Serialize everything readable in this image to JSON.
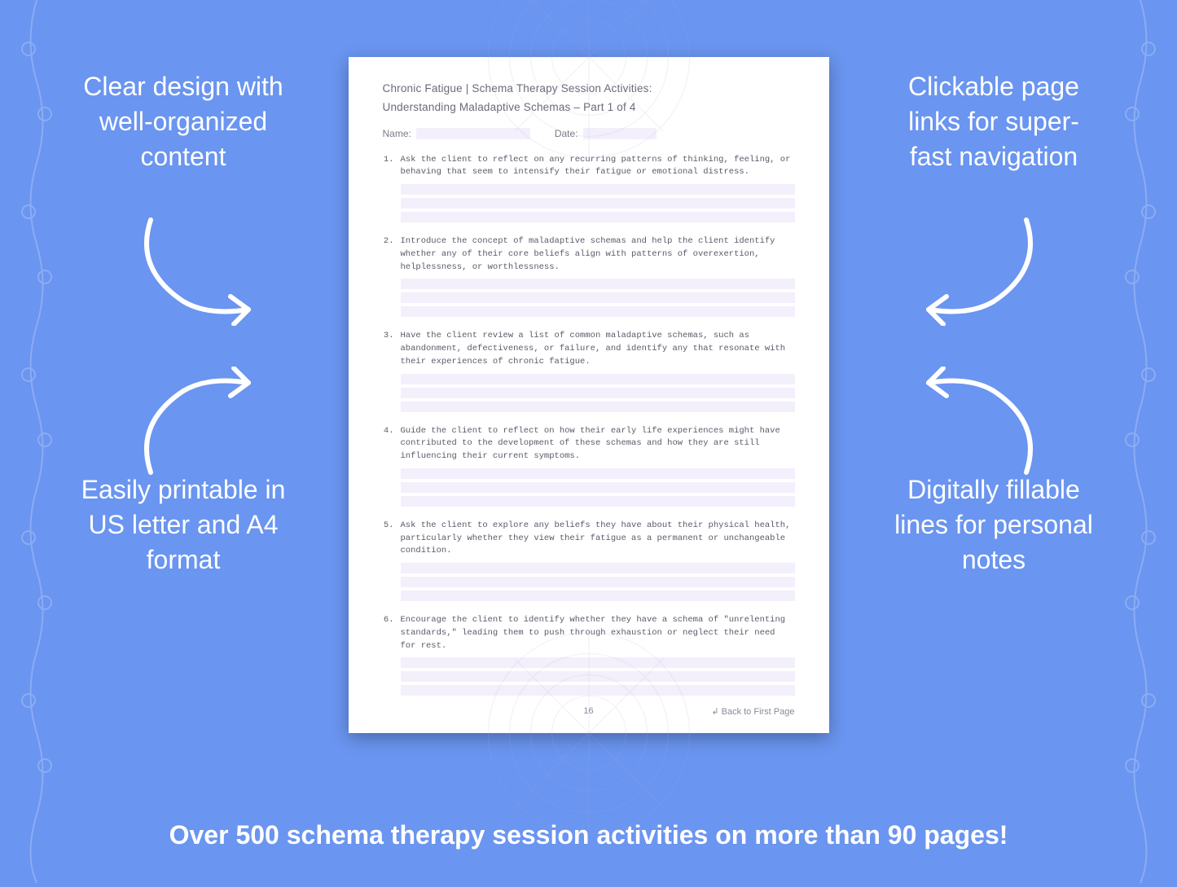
{
  "background_color": "#6a95f0",
  "callouts": {
    "top_left": "Clear design with well-organized content",
    "top_right": "Clickable page links for super-fast navigation",
    "bottom_left": "Easily printable in US letter and A4 format",
    "bottom_right": "Digitally fillable lines for personal notes"
  },
  "banner": "Over 500 schema therapy session activities on more than 90 pages!",
  "worksheet": {
    "title_line1": "Chronic Fatigue | Schema Therapy Session Activities:",
    "title_line2": "Understanding Maladaptive Schemas  – Part 1 of 4",
    "name_label": "Name:",
    "date_label": "Date:",
    "items": [
      "Ask the client to reflect on any recurring patterns of thinking, feeling, or behaving that seem to intensify their fatigue or emotional distress.",
      "Introduce the concept of maladaptive schemas and help the client identify whether any of their core beliefs align with patterns of overexertion, helplessness, or worthlessness.",
      "Have the client review a list of common maladaptive schemas, such as abandonment, defectiveness, or failure, and identify any that resonate with their experiences of chronic fatigue.",
      "Guide the client to reflect on how their early life experiences might have contributed to the development of these schemas and how they are still influencing their current symptoms.",
      "Ask the client to explore any beliefs they have about their physical health, particularly whether they view their fatigue as a permanent or unchangeable condition.",
      "Encourage the client to identify whether they have a schema of \"unrelenting standards,\" leading them to push through exhaustion or neglect their need for rest."
    ],
    "line_count_per_item": 3,
    "line_color": "#f3effb",
    "page_number": "16",
    "back_link": "↲ Back to First Page"
  },
  "style": {
    "callout_color": "#ffffff",
    "callout_fontsize": 32,
    "banner_color": "#ffffff",
    "banner_fontsize": 32,
    "sheet_bg": "#ffffff",
    "sheet_text_color": "#5a5a6a",
    "title_color": "#6a6a7a",
    "arrow_color": "#ffffff",
    "arrow_stroke_width": 6
  }
}
